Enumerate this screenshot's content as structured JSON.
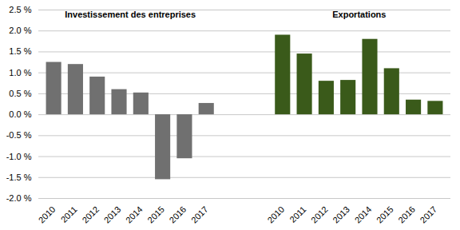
{
  "chart_data": {
    "type": "bar",
    "categories": [
      "2010",
      "2011",
      "2012",
      "2013",
      "2014",
      "2015",
      "2016",
      "2017"
    ],
    "series": [
      {
        "name": "Investissement des entreprises",
        "color": "#707070",
        "values": [
          1.25,
          1.2,
          0.9,
          0.6,
          0.52,
          -1.55,
          -1.05,
          0.27
        ]
      },
      {
        "name": "Exportations",
        "color": "#3a5a1a",
        "values": [
          1.9,
          1.45,
          0.8,
          0.82,
          1.8,
          1.1,
          0.35,
          0.32
        ]
      }
    ],
    "ylim": [
      -2.0,
      2.5
    ],
    "yticks": [
      {
        "value": -2.0,
        "label": "-2.0 %"
      },
      {
        "value": -1.5,
        "label": "-1.5 %"
      },
      {
        "value": -1.0,
        "label": "-1.0 %"
      },
      {
        "value": -0.5,
        "label": "-0.5 %"
      },
      {
        "value": 0.0,
        "label": "0.0 %"
      },
      {
        "value": 0.5,
        "label": "0.5 %"
      },
      {
        "value": 1.0,
        "label": "1.0 %"
      },
      {
        "value": 1.5,
        "label": "1.5 %"
      },
      {
        "value": 2.0,
        "label": "2.0 %"
      },
      {
        "value": 2.5,
        "label": "2.5 %"
      }
    ],
    "grid": true
  }
}
